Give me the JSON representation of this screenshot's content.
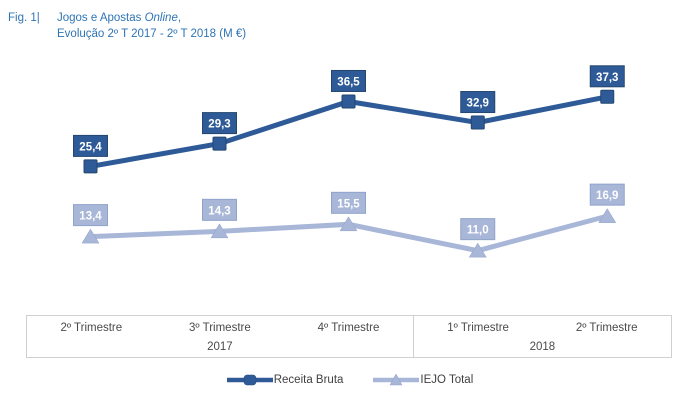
{
  "figure": {
    "label": "Fig. 1|",
    "title_prefix": "Jogos e Apostas ",
    "title_online": "Online",
    "title_suffix": ",",
    "subtitle": "Evolução 2º T 2017 - 2º T 2018 (M €)"
  },
  "chart_data": {
    "type": "line",
    "title": "Jogos e Apostas Online, Evolução 2º T 2017 - 2º T 2018 (M €)",
    "unit": "M €",
    "categories": [
      "2º Trimestre",
      "3º Trimestre",
      "4º Trimestre",
      "1º Trimestre",
      "2º Trimestre"
    ],
    "year_groups": [
      {
        "label": "2017",
        "span": 3
      },
      {
        "label": "2018",
        "span": 2
      }
    ],
    "series": [
      {
        "name": "Receita Bruta",
        "values": [
          25.4,
          29.3,
          36.5,
          32.9,
          37.3
        ],
        "labels": [
          "25,4",
          "29,3",
          "36,5",
          "32,9",
          "37,3"
        ],
        "color": "#2E5B97",
        "border_color": "#24466F",
        "marker": "square"
      },
      {
        "name": "IEJO Total",
        "values": [
          13.4,
          14.3,
          15.5,
          11.0,
          16.9
        ],
        "labels": [
          "13,4",
          "14,3",
          "15,5",
          "11,0",
          "16,9"
        ],
        "color": "#A8B6D8",
        "border_color": "#90A3CB",
        "marker": "triangle"
      }
    ],
    "ylim": [
      0,
      45
    ],
    "grid": false,
    "y_axis_visible": false,
    "data_labels": true,
    "legend_position": "bottom"
  },
  "colors": {
    "title_text": "#2E74B5",
    "axis_text": "#4A4A4A",
    "table_border": "#D0D0D0",
    "background": "#FFFFFF"
  }
}
